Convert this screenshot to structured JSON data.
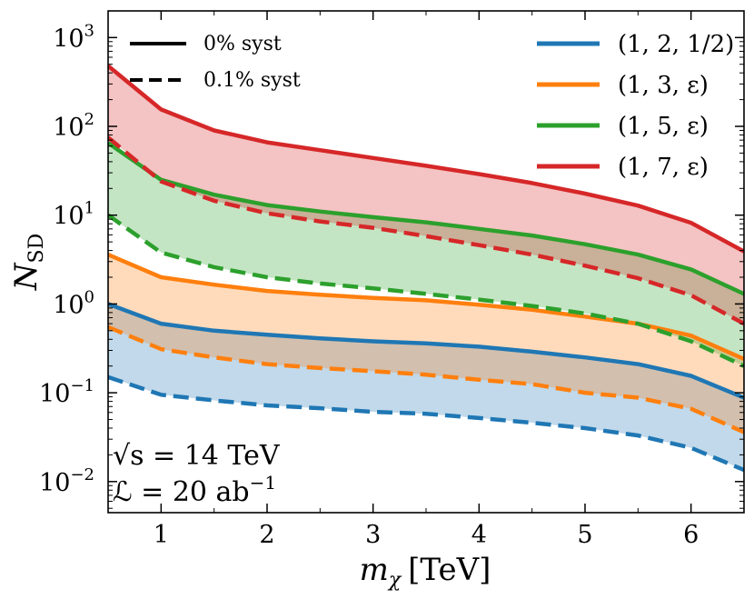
{
  "chart_data": {
    "type": "line",
    "title": "",
    "xlabel_main": "m",
    "xlabel_sub": "χ",
    "xlabel_unit": "[TeV]",
    "ylabel_main": "N",
    "ylabel_sub": "SD",
    "xlim": [
      0.5,
      6.5
    ],
    "ylim_log10": [
      -2.35,
      3.3
    ],
    "yscale": "log",
    "x_ticks": [
      1,
      2,
      3,
      4,
      5,
      6
    ],
    "x_tick_labels": [
      "1",
      "2",
      "3",
      "4",
      "5",
      "6"
    ],
    "y_ticks_log10": [
      -2,
      -1,
      0,
      1,
      2,
      3
    ],
    "y_tick_bases": [
      "10",
      "10",
      "10",
      "10",
      "10",
      "10"
    ],
    "y_tick_exps": [
      "−2",
      "−1",
      "0",
      "1",
      "2",
      "3"
    ],
    "x": [
      0.5,
      1.0,
      1.5,
      2.0,
      2.5,
      3.0,
      3.5,
      4.0,
      4.5,
      5.0,
      5.5,
      6.0,
      6.5
    ],
    "series": [
      {
        "name": "(1, 2, 1/2)",
        "color": "#1f77b4",
        "fill": "#c5daec",
        "solid": [
          1.0,
          0.6,
          0.5,
          0.45,
          0.41,
          0.38,
          0.36,
          0.33,
          0.29,
          0.25,
          0.21,
          0.155,
          0.088
        ],
        "dashed": [
          0.15,
          0.095,
          0.082,
          0.072,
          0.067,
          0.061,
          0.058,
          0.052,
          0.046,
          0.04,
          0.033,
          0.024,
          0.0135
        ]
      },
      {
        "name": "(1, 3, ε)",
        "color": "#ff7f0e",
        "fill": "#ffd9b8",
        "solid": [
          3.6,
          2.0,
          1.65,
          1.4,
          1.27,
          1.17,
          1.1,
          0.98,
          0.86,
          0.72,
          0.6,
          0.44,
          0.24
        ],
        "dashed": [
          0.55,
          0.31,
          0.25,
          0.21,
          0.19,
          0.175,
          0.16,
          0.14,
          0.125,
          0.1,
          0.088,
          0.066,
          0.036
        ]
      },
      {
        "name": "(1, 5, ε)",
        "color": "#2ca02c",
        "fill": "#c3e2c3",
        "solid": [
          65,
          25,
          17,
          13,
          11,
          9.5,
          8.3,
          7.0,
          5.9,
          4.7,
          3.6,
          2.45,
          1.3
        ],
        "dashed": [
          10,
          3.8,
          2.6,
          2.0,
          1.7,
          1.5,
          1.3,
          1.12,
          0.95,
          0.78,
          0.6,
          0.38,
          0.2
        ]
      },
      {
        "name": "(1, 7, ε)",
        "color": "#d62728",
        "fill": "#f2bebe",
        "solid": [
          480,
          155,
          90,
          66,
          54,
          44,
          36,
          29,
          23,
          17.5,
          12.8,
          8.2,
          3.9
        ],
        "dashed": [
          75,
          24,
          14.5,
          10.5,
          8.5,
          7.2,
          5.8,
          4.6,
          3.6,
          2.7,
          1.95,
          1.25,
          0.6
        ]
      }
    ],
    "legend_styles": [
      {
        "label": "0% syst",
        "dash": false
      },
      {
        "label": "0.1% syst",
        "dash": true
      }
    ],
    "annotation_line1": "√s = 14 TeV",
    "annotation_line2_pre": "ℒ = 20 ab",
    "annotation_line2_exp": "−1"
  }
}
